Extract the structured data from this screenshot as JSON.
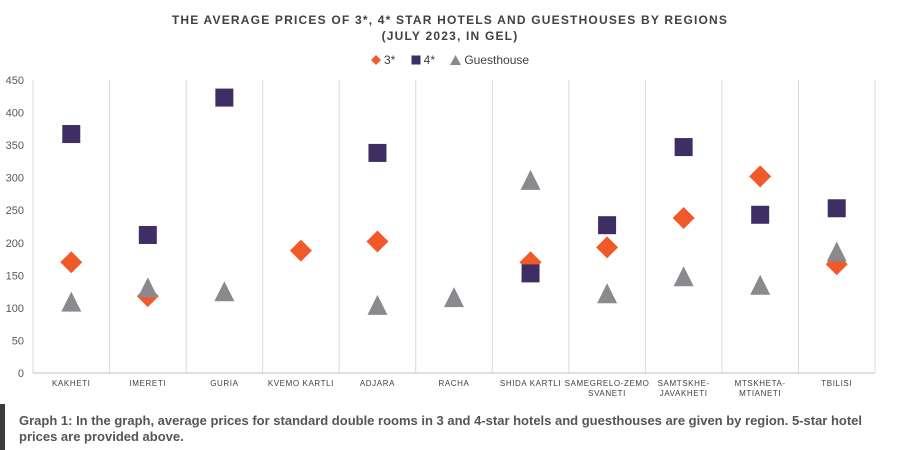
{
  "chart_data": {
    "type": "scatter",
    "title_lines": [
      "THE AVERAGE PRICES OF 3*, 4* STAR HOTELS AND GUESTHOUSES BY REGIONS",
      "(JULY 2023, IN GEL)"
    ],
    "categories": [
      "KAKHETI",
      "IMERETI",
      "GURIA",
      "KVEMO KARTLI",
      "ADJARA",
      "RACHA",
      "SHIDA KARTLI",
      "SAMEGRELO-ZEMO SVANETI",
      "SAMTSKHE-JAVAKHETI",
      "MTSKHETA-MTIANETI",
      "TBILISI"
    ],
    "category_lines": [
      [
        "KAKHETI"
      ],
      [
        "IMERETI"
      ],
      [
        "GURIA"
      ],
      [
        "KVEMO KARTLI"
      ],
      [
        "ADJARA"
      ],
      [
        "RACHA"
      ],
      [
        "SHIDA KARTLI"
      ],
      [
        "SAMEGRELO-ZEMO",
        "SVANETI"
      ],
      [
        "SAMTSKHE-",
        "JAVAKHETI"
      ],
      [
        "MTSKHETA-",
        "MTIANETI"
      ],
      [
        "TBILISI"
      ]
    ],
    "series": [
      {
        "name": "3*",
        "marker": "diamond",
        "color": "#f05a2a",
        "values": [
          170,
          118,
          null,
          188,
          202,
          null,
          170,
          193,
          238,
          302,
          167
        ]
      },
      {
        "name": "4*",
        "marker": "square",
        "color": "#3f2e63",
        "values": [
          367,
          212,
          423,
          null,
          338,
          null,
          153,
          227,
          347,
          243,
          253
        ]
      },
      {
        "name": "Guesthouse",
        "marker": "triangle",
        "color": "#8a8a8e",
        "values": [
          108,
          130,
          124,
          null,
          103,
          115,
          295,
          121,
          147,
          134,
          185
        ]
      }
    ],
    "ylim": [
      0,
      450
    ],
    "yticks": [
      0,
      50,
      100,
      150,
      200,
      250,
      300,
      350,
      400,
      450
    ],
    "grid": "vertical category separators",
    "legend": "top-center"
  },
  "caption": "Graph 1: In the graph, average prices for standard double rooms in 3 and 4-star hotels and guesthouses are given by region. 5-star hotel prices are provided above."
}
